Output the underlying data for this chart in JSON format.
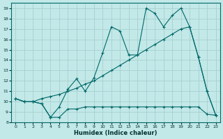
{
  "xlabel": "Humidex (Indice chaleur)",
  "bg_color": "#c2e8e8",
  "grid_color": "#a8d0d0",
  "line_color": "#006868",
  "xlim": [
    -0.5,
    23.5
  ],
  "ylim": [
    8,
    19.5
  ],
  "yticks": [
    8,
    9,
    10,
    11,
    12,
    13,
    14,
    15,
    16,
    17,
    18,
    19
  ],
  "xticks": [
    0,
    1,
    2,
    3,
    4,
    5,
    6,
    7,
    8,
    9,
    10,
    11,
    12,
    13,
    14,
    15,
    16,
    17,
    18,
    19,
    20,
    21,
    22,
    23
  ],
  "line1_x": [
    0,
    1,
    2,
    3,
    4,
    5,
    6,
    7,
    8,
    9,
    10,
    11,
    12,
    13,
    14,
    15,
    16,
    17,
    18,
    19,
    20,
    21,
    22,
    23
  ],
  "line1_y": [
    10.3,
    10.0,
    10.0,
    9.8,
    8.5,
    8.5,
    9.3,
    9.3,
    9.5,
    9.5,
    9.5,
    9.5,
    9.5,
    9.5,
    9.5,
    9.5,
    9.5,
    9.5,
    9.5,
    9.5,
    9.5,
    9.5,
    8.8,
    8.7
  ],
  "line2_x": [
    0,
    1,
    2,
    3,
    4,
    5,
    6,
    7,
    8,
    9,
    10,
    11,
    12,
    13,
    14,
    15,
    16,
    17,
    18,
    19,
    20,
    21,
    22,
    23
  ],
  "line2_y": [
    10.3,
    10.0,
    10.0,
    10.3,
    10.5,
    10.7,
    11.0,
    11.3,
    11.7,
    12.0,
    12.5,
    13.0,
    13.5,
    14.0,
    14.5,
    15.0,
    15.5,
    16.0,
    16.5,
    17.0,
    17.2,
    14.3,
    11.0,
    8.7
  ],
  "line3_x": [
    0,
    1,
    2,
    3,
    4,
    5,
    6,
    7,
    8,
    9,
    10,
    11,
    12,
    13,
    14,
    15,
    16,
    17,
    18,
    19,
    20,
    21,
    22,
    23
  ],
  "line3_y": [
    10.3,
    10.0,
    10.0,
    9.8,
    8.5,
    9.5,
    11.2,
    12.2,
    11.0,
    12.3,
    14.7,
    17.2,
    16.8,
    14.5,
    14.5,
    19.0,
    18.5,
    17.2,
    18.3,
    19.0,
    17.2,
    14.3,
    11.0,
    8.7
  ]
}
